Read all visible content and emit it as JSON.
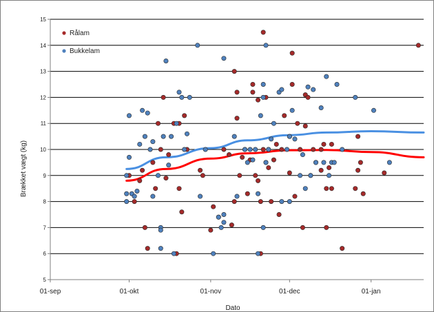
{
  "chart_data": {
    "type": "scatter",
    "xlabel": "Dato",
    "ylabel": "Brækket vægt (kg)",
    "x_tick_labels": [
      "01-sep",
      "01-okt",
      "01-nov",
      "01-dec",
      "01-jan"
    ],
    "x_ticks": [
      "2000-09-01",
      "2000-10-01",
      "2000-11-01",
      "2000-12-01",
      "2001-01-01"
    ],
    "xlim": [
      "2000-09-01",
      "2001-01-21"
    ],
    "ylim": [
      5,
      15
    ],
    "y_ticks": [
      5,
      6,
      7,
      8,
      9,
      10,
      11,
      12,
      13,
      14,
      15
    ],
    "grid": true,
    "legend_position": "top-left",
    "series": [
      {
        "name": "Rålam",
        "color": "#a52a2a",
        "points": [
          [
            "2000-10-01",
            9.0
          ],
          [
            "2000-10-03",
            8.0
          ],
          [
            "2000-10-05",
            8.8
          ],
          [
            "2000-10-06",
            9.2
          ],
          [
            "2000-10-07",
            7.0
          ],
          [
            "2000-10-08",
            6.2
          ],
          [
            "2000-10-10",
            9.5
          ],
          [
            "2000-10-11",
            8.5
          ],
          [
            "2000-10-12",
            11.0
          ],
          [
            "2000-10-13",
            10.0
          ],
          [
            "2000-10-14",
            12.0
          ],
          [
            "2000-10-15",
            8.9
          ],
          [
            "2000-10-16",
            9.8
          ],
          [
            "2000-10-18",
            11.0
          ],
          [
            "2000-10-19",
            6.0
          ],
          [
            "2000-10-20",
            8.5
          ],
          [
            "2000-10-20",
            11.0
          ],
          [
            "2000-10-21",
            7.6
          ],
          [
            "2000-10-22",
            11.3
          ],
          [
            "2000-10-23",
            10.0
          ],
          [
            "2000-10-28",
            9.2
          ],
          [
            "2000-10-29",
            9.0
          ],
          [
            "2000-11-01",
            6.9
          ],
          [
            "2000-11-02",
            7.8
          ],
          [
            "2000-11-04",
            7.4
          ],
          [
            "2000-11-06",
            10.0
          ],
          [
            "2000-11-08",
            9.8
          ],
          [
            "2000-11-09",
            7.1
          ],
          [
            "2000-11-10",
            8.0
          ],
          [
            "2000-11-10",
            13.0
          ],
          [
            "2000-11-11",
            12.2
          ],
          [
            "2000-11-11",
            11.2
          ],
          [
            "2000-11-12",
            9.0
          ],
          [
            "2000-11-13",
            9.7
          ],
          [
            "2000-11-14",
            10.0
          ],
          [
            "2000-11-15",
            8.3
          ],
          [
            "2000-11-16",
            9.6
          ],
          [
            "2000-11-17",
            12.5
          ],
          [
            "2000-11-17",
            12.2
          ],
          [
            "2000-11-18",
            9.0
          ],
          [
            "2000-11-19",
            8.8
          ],
          [
            "2000-11-19",
            11.9
          ],
          [
            "2000-11-20",
            8.0
          ],
          [
            "2000-11-20",
            6.0
          ],
          [
            "2000-11-21",
            14.5
          ],
          [
            "2000-11-21",
            10.0
          ],
          [
            "2000-11-22",
            9.5
          ],
          [
            "2000-11-22",
            12.0
          ],
          [
            "2000-11-23",
            9.3
          ],
          [
            "2000-11-23",
            10.0
          ],
          [
            "2000-11-24",
            8.0
          ],
          [
            "2000-11-25",
            9.6
          ],
          [
            "2000-11-26",
            10.2
          ],
          [
            "2000-11-27",
            7.5
          ],
          [
            "2000-11-28",
            10.0
          ],
          [
            "2000-11-29",
            11.3
          ],
          [
            "2000-12-01",
            10.5
          ],
          [
            "2000-12-01",
            9.1
          ],
          [
            "2000-12-02",
            13.7
          ],
          [
            "2000-12-02",
            12.5
          ],
          [
            "2000-12-03",
            8.2
          ],
          [
            "2000-12-04",
            11.0
          ],
          [
            "2000-12-05",
            10.0
          ],
          [
            "2000-12-06",
            7.0
          ],
          [
            "2000-12-07",
            10.9
          ],
          [
            "2000-12-07",
            12.1
          ],
          [
            "2000-12-08",
            12.0
          ],
          [
            "2000-12-09",
            9.0
          ],
          [
            "2000-12-10",
            10.0
          ],
          [
            "2000-12-11",
            9.5
          ],
          [
            "2000-12-13",
            10.0
          ],
          [
            "2000-12-13",
            9.2
          ],
          [
            "2000-12-14",
            10.2
          ],
          [
            "2000-12-15",
            7.0
          ],
          [
            "2000-12-15",
            8.5
          ],
          [
            "2000-12-16",
            9.3
          ],
          [
            "2000-12-17",
            8.5
          ],
          [
            "2000-12-17",
            10.2
          ],
          [
            "2000-12-21",
            6.2
          ],
          [
            "2000-12-26",
            8.5
          ],
          [
            "2000-12-27",
            10.5
          ],
          [
            "2000-12-27",
            9.2
          ],
          [
            "2000-12-28",
            9.5
          ],
          [
            "2000-12-29",
            8.3
          ],
          [
            "2001-01-06",
            9.1
          ],
          [
            "2001-01-19",
            14.0
          ]
        ]
      },
      {
        "name": "Bukkelam",
        "color": "#4f81bd",
        "points": [
          [
            "2000-09-30",
            9.0
          ],
          [
            "2000-09-30",
            8.3
          ],
          [
            "2000-09-30",
            8.0
          ],
          [
            "2000-10-01",
            11.3
          ],
          [
            "2000-10-01",
            9.7
          ],
          [
            "2000-10-02",
            8.3
          ],
          [
            "2000-10-03",
            8.2
          ],
          [
            "2000-10-04",
            8.4
          ],
          [
            "2000-10-05",
            10.2
          ],
          [
            "2000-10-06",
            11.5
          ],
          [
            "2000-10-07",
            10.5
          ],
          [
            "2000-10-08",
            11.4
          ],
          [
            "2000-10-09",
            10.0
          ],
          [
            "2000-10-10",
            10.3
          ],
          [
            "2000-10-10",
            8.2
          ],
          [
            "2000-10-12",
            9.0
          ],
          [
            "2000-10-13",
            7.0
          ],
          [
            "2000-10-13",
            6.2
          ],
          [
            "2000-10-13",
            6.9
          ],
          [
            "2000-10-14",
            10.5
          ],
          [
            "2000-10-15",
            13.4
          ],
          [
            "2000-10-16",
            9.4
          ],
          [
            "2000-10-17",
            10.5
          ],
          [
            "2000-10-18",
            6.0
          ],
          [
            "2000-10-19",
            11.0
          ],
          [
            "2000-10-20",
            12.2
          ],
          [
            "2000-10-21",
            12.0
          ],
          [
            "2000-10-22",
            10.0
          ],
          [
            "2000-10-23",
            10.6
          ],
          [
            "2000-10-24",
            12.0
          ],
          [
            "2000-10-27",
            14.0
          ],
          [
            "2000-10-28",
            8.2
          ],
          [
            "2000-10-30",
            10.0
          ],
          [
            "2000-11-02",
            6.0
          ],
          [
            "2000-11-04",
            7.4
          ],
          [
            "2000-11-05",
            7.0
          ],
          [
            "2000-11-06",
            7.2
          ],
          [
            "2000-11-06",
            7.5
          ],
          [
            "2000-11-06",
            13.5
          ],
          [
            "2000-11-10",
            10.5
          ],
          [
            "2000-11-11",
            8.2
          ],
          [
            "2000-11-14",
            10.0
          ],
          [
            "2000-11-15",
            9.5
          ],
          [
            "2000-11-16",
            10.0
          ],
          [
            "2000-11-17",
            9.6
          ],
          [
            "2000-11-18",
            10.0
          ],
          [
            "2000-11-19",
            8.3
          ],
          [
            "2000-11-19",
            6.0
          ],
          [
            "2000-11-20",
            11.3
          ],
          [
            "2000-11-21",
            7.0
          ],
          [
            "2000-11-21",
            12.5
          ],
          [
            "2000-11-21",
            12.0
          ],
          [
            "2000-11-22",
            14.0
          ],
          [
            "2000-11-22",
            9.5
          ],
          [
            "2000-11-23",
            10.0
          ],
          [
            "2000-11-24",
            10.4
          ],
          [
            "2000-11-25",
            11.0
          ],
          [
            "2000-11-27",
            12.2
          ],
          [
            "2000-11-28",
            12.3
          ],
          [
            "2000-11-28",
            8.0
          ],
          [
            "2000-11-30",
            10.0
          ],
          [
            "2000-12-01",
            10.5
          ],
          [
            "2000-12-01",
            8.0
          ],
          [
            "2000-12-02",
            11.5
          ],
          [
            "2000-12-03",
            10.4
          ],
          [
            "2000-12-05",
            9.0
          ],
          [
            "2000-12-06",
            9.8
          ],
          [
            "2000-12-07",
            8.5
          ],
          [
            "2000-12-08",
            12.4
          ],
          [
            "2000-12-09",
            9.0
          ],
          [
            "2000-12-10",
            12.3
          ],
          [
            "2000-12-11",
            9.5
          ],
          [
            "2000-12-13",
            11.6
          ],
          [
            "2000-12-14",
            9.5
          ],
          [
            "2000-12-15",
            12.8
          ],
          [
            "2000-12-16",
            9.0
          ],
          [
            "2000-12-17",
            9.5
          ],
          [
            "2000-12-18",
            9.5
          ],
          [
            "2000-12-19",
            12.5
          ],
          [
            "2000-12-21",
            10.0
          ],
          [
            "2000-12-26",
            12.0
          ],
          [
            "2001-01-02",
            11.5
          ],
          [
            "2001-01-08",
            9.5
          ]
        ]
      }
    ],
    "trendlines": [
      {
        "series": "Rålam",
        "color": "#ff0000",
        "points": [
          [
            "2000-09-30",
            8.8
          ],
          [
            "2000-10-15",
            9.25
          ],
          [
            "2000-11-01",
            9.65
          ],
          [
            "2000-11-15",
            9.85
          ],
          [
            "2000-12-01",
            9.97
          ],
          [
            "2000-12-15",
            9.98
          ],
          [
            "2001-01-01",
            9.9
          ],
          [
            "2001-01-21",
            9.7
          ]
        ]
      },
      {
        "series": "Bukkelam",
        "color": "#4a90e2",
        "points": [
          [
            "2000-09-30",
            9.25
          ],
          [
            "2000-10-15",
            9.7
          ],
          [
            "2000-11-01",
            10.05
          ],
          [
            "2000-11-15",
            10.35
          ],
          [
            "2000-12-01",
            10.55
          ],
          [
            "2000-12-15",
            10.65
          ],
          [
            "2001-01-01",
            10.7
          ],
          [
            "2001-01-21",
            10.65
          ]
        ]
      }
    ]
  }
}
